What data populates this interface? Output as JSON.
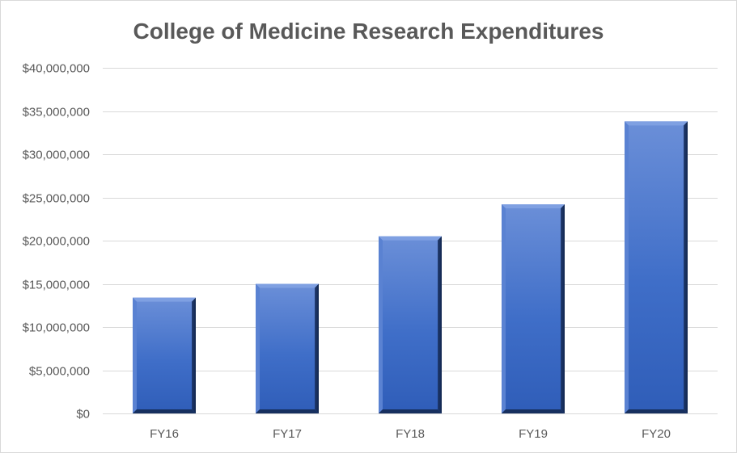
{
  "chart_data": {
    "type": "bar",
    "title": "College of Medicine Research Expenditures",
    "xlabel": "",
    "ylabel": "",
    "categories": [
      "FY16",
      "FY17",
      "FY18",
      "FY19",
      "FY20"
    ],
    "values": [
      13400000,
      15000000,
      20500000,
      24200000,
      33800000
    ],
    "ylim": [
      0,
      40000000
    ],
    "yticks": [
      0,
      5000000,
      10000000,
      15000000,
      20000000,
      25000000,
      30000000,
      35000000,
      40000000
    ],
    "ytick_labels": [
      "$0",
      "$5,000,000",
      "$10,000,000",
      "$15,000,000",
      "$20,000,000",
      "$25,000,000",
      "$30,000,000",
      "$35,000,000",
      "$40,000,000"
    ],
    "grid": true,
    "legend": "none",
    "colors": {
      "bar": "#4472c4",
      "bar_light": "#6d93dc",
      "bar_dark": "#1f3b73",
      "grid": "#d9d9d9",
      "text": "#595959"
    }
  }
}
